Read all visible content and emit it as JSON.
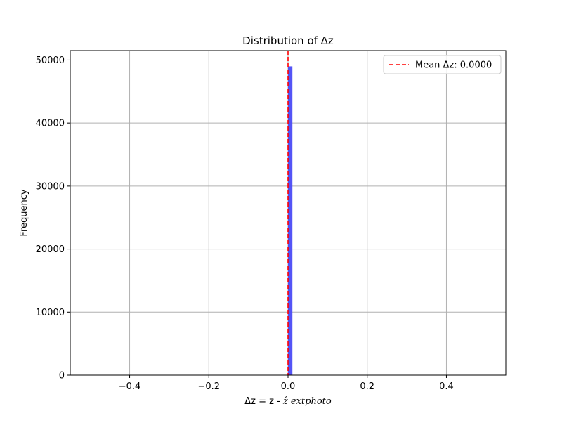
{
  "chart_data": {
    "type": "bar",
    "title": "Distribution of Δz",
    "xlabel": "Δz = z - ẑ extphoto",
    "xlabel_parts": {
      "plain": "Δz = z - ",
      "italic": "ẑ extphoto"
    },
    "ylabel": "Frequency",
    "xlim": [
      -0.55,
      0.55
    ],
    "ylim": [
      0,
      51500
    ],
    "x_ticks": [
      -0.4,
      -0.2,
      0.0,
      0.2,
      0.4
    ],
    "x_tick_labels": [
      "−0.4",
      "−0.2",
      "0.0",
      "0.2",
      "0.4"
    ],
    "y_ticks": [
      0,
      10000,
      20000,
      30000,
      40000,
      50000
    ],
    "y_tick_labels": [
      "0",
      "10000",
      "20000",
      "30000",
      "40000",
      "50000"
    ],
    "grid": true,
    "bars": [
      {
        "x_start": 0.0,
        "x_end": 0.011,
        "value": 49000
      }
    ],
    "bar_color": "#4b4bf5",
    "mean_line": {
      "x": 0.0,
      "color": "#ff0000",
      "style": "dashed",
      "label": "Mean Δz: 0.0000"
    },
    "legend": {
      "position": "top-right",
      "entries": [
        "Mean Δz: 0.0000"
      ]
    }
  }
}
